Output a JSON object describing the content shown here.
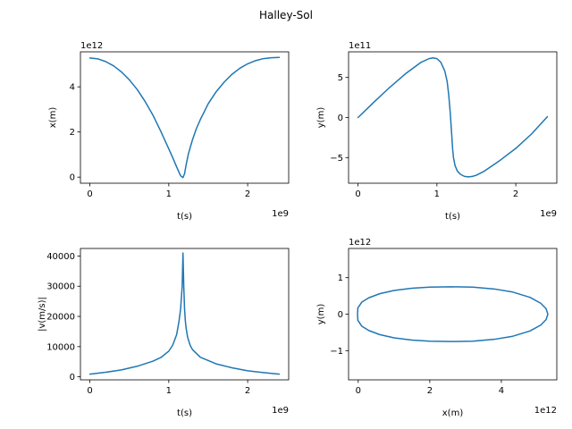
{
  "figure": {
    "suptitle": "Halley-Sol"
  },
  "chart_data": [
    {
      "type": "line",
      "xlabel": "t(s)",
      "ylabel": "x(m)",
      "x_offset": "1e9",
      "y_offset": "1e12",
      "xlim": [
        -0.12,
        2.52
      ],
      "ylim": [
        -0.27,
        5.55
      ],
      "xticks": [
        {
          "v": 0,
          "label": "0"
        },
        {
          "v": 1,
          "label": "1"
        },
        {
          "v": 2,
          "label": "2"
        }
      ],
      "yticks": [
        {
          "v": 0,
          "label": "0"
        },
        {
          "v": 2,
          "label": "2"
        },
        {
          "v": 4,
          "label": "4"
        }
      ],
      "color": "#1f77b4",
      "grid": false,
      "series": [
        {
          "x": [
            0,
            0.1,
            0.2,
            0.3,
            0.4,
            0.5,
            0.6,
            0.7,
            0.8,
            0.9,
            1.0,
            1.05,
            1.1,
            1.15,
            1.18,
            1.2,
            1.22,
            1.25,
            1.3,
            1.35,
            1.4,
            1.5,
            1.6,
            1.7,
            1.8,
            1.9,
            2.0,
            2.1,
            2.2,
            2.3,
            2.4
          ],
          "y": [
            5.28,
            5.24,
            5.12,
            4.93,
            4.66,
            4.31,
            3.88,
            3.35,
            2.74,
            2.02,
            1.25,
            0.86,
            0.45,
            0.06,
            -0.02,
            0.15,
            0.55,
            1.05,
            1.65,
            2.15,
            2.55,
            3.25,
            3.78,
            4.2,
            4.55,
            4.82,
            5.02,
            5.16,
            5.25,
            5.29,
            5.3
          ]
        }
      ]
    },
    {
      "type": "line",
      "xlabel": "t(s)",
      "ylabel": "y(m)",
      "x_offset": "1e9",
      "y_offset": "1e11",
      "xlim": [
        -0.12,
        2.52
      ],
      "ylim": [
        -8.2,
        8.2
      ],
      "xticks": [
        {
          "v": 0,
          "label": "0"
        },
        {
          "v": 1,
          "label": "1"
        },
        {
          "v": 2,
          "label": "2"
        }
      ],
      "yticks": [
        {
          "v": -5,
          "label": "−5"
        },
        {
          "v": 0,
          "label": "0"
        },
        {
          "v": 5,
          "label": "5"
        }
      ],
      "color": "#1f77b4",
      "grid": false,
      "series": [
        {
          "x": [
            0,
            0.2,
            0.4,
            0.6,
            0.8,
            0.9,
            0.95,
            1.0,
            1.05,
            1.1,
            1.13,
            1.15,
            1.17,
            1.18,
            1.19,
            1.2,
            1.21,
            1.23,
            1.26,
            1.3,
            1.35,
            1.4,
            1.45,
            1.5,
            1.6,
            1.8,
            2.0,
            2.2,
            2.4
          ],
          "y": [
            0,
            1.9,
            3.75,
            5.45,
            6.9,
            7.35,
            7.45,
            7.35,
            6.9,
            5.8,
            4.5,
            2.8,
            0.5,
            -1.0,
            -2.5,
            -4.0,
            -5.0,
            -6.0,
            -6.7,
            -7.1,
            -7.35,
            -7.4,
            -7.35,
            -7.2,
            -6.7,
            -5.35,
            -3.85,
            -2.05,
            0.1
          ]
        }
      ]
    },
    {
      "type": "line",
      "xlabel": "t(s)",
      "ylabel": "|v(m/s)|",
      "x_offset": "1e9",
      "y_offset": "",
      "xlim": [
        -0.12,
        2.52
      ],
      "ylim": [
        -1000,
        42500
      ],
      "xticks": [
        {
          "v": 0,
          "label": "0"
        },
        {
          "v": 1,
          "label": "1"
        },
        {
          "v": 2,
          "label": "2"
        }
      ],
      "yticks": [
        {
          "v": 0,
          "label": "0"
        },
        {
          "v": 10000,
          "label": "10000"
        },
        {
          "v": 20000,
          "label": "20000"
        },
        {
          "v": 30000,
          "label": "30000"
        },
        {
          "v": 40000,
          "label": "40000"
        }
      ],
      "color": "#1f77b4",
      "grid": false,
      "series": [
        {
          "x": [
            0,
            0.2,
            0.4,
            0.6,
            0.8,
            0.9,
            1.0,
            1.05,
            1.1,
            1.13,
            1.15,
            1.17,
            1.18,
            1.19,
            1.2,
            1.21,
            1.22,
            1.24,
            1.27,
            1.3,
            1.4,
            1.6,
            1.8,
            2.0,
            2.2,
            2.4
          ],
          "y": [
            900,
            1500,
            2300,
            3500,
            5200,
            6400,
            8500,
            10500,
            14000,
            18500,
            22500,
            30000,
            41000,
            30000,
            22500,
            18500,
            16000,
            13000,
            10500,
            9000,
            6500,
            4300,
            3000,
            2000,
            1400,
            900
          ]
        }
      ]
    },
    {
      "type": "line",
      "xlabel": "x(m)",
      "ylabel": "y(m)",
      "x_offset": "1e12",
      "y_offset": "1e12",
      "xlim": [
        -0.27,
        5.55
      ],
      "ylim": [
        -1.8,
        1.8
      ],
      "xticks": [
        {
          "v": 0,
          "label": "0"
        },
        {
          "v": 2,
          "label": "2"
        },
        {
          "v": 4,
          "label": "4"
        }
      ],
      "yticks": [
        {
          "v": -1,
          "label": "−1"
        },
        {
          "v": 0,
          "label": "0"
        },
        {
          "v": 1,
          "label": "1"
        }
      ],
      "color": "#1f77b4",
      "grid": false,
      "series": [
        {
          "x": [
            -0.02,
            -0.01,
            0.1,
            0.3,
            0.6,
            1.0,
            1.5,
            2.0,
            2.6,
            3.2,
            3.8,
            4.3,
            4.8,
            5.1,
            5.25,
            5.3,
            5.25,
            5.1,
            4.8,
            4.3,
            3.8,
            3.2,
            2.6,
            2.0,
            1.5,
            1.0,
            0.6,
            0.3,
            0.1,
            -0.01,
            -0.02
          ],
          "y": [
            0,
            0.17,
            0.33,
            0.45,
            0.56,
            0.65,
            0.71,
            0.74,
            0.75,
            0.74,
            0.69,
            0.61,
            0.46,
            0.3,
            0.15,
            0,
            -0.15,
            -0.3,
            -0.46,
            -0.61,
            -0.69,
            -0.74,
            -0.75,
            -0.74,
            -0.71,
            -0.65,
            -0.56,
            -0.45,
            -0.33,
            -0.17,
            0
          ]
        }
      ]
    }
  ]
}
